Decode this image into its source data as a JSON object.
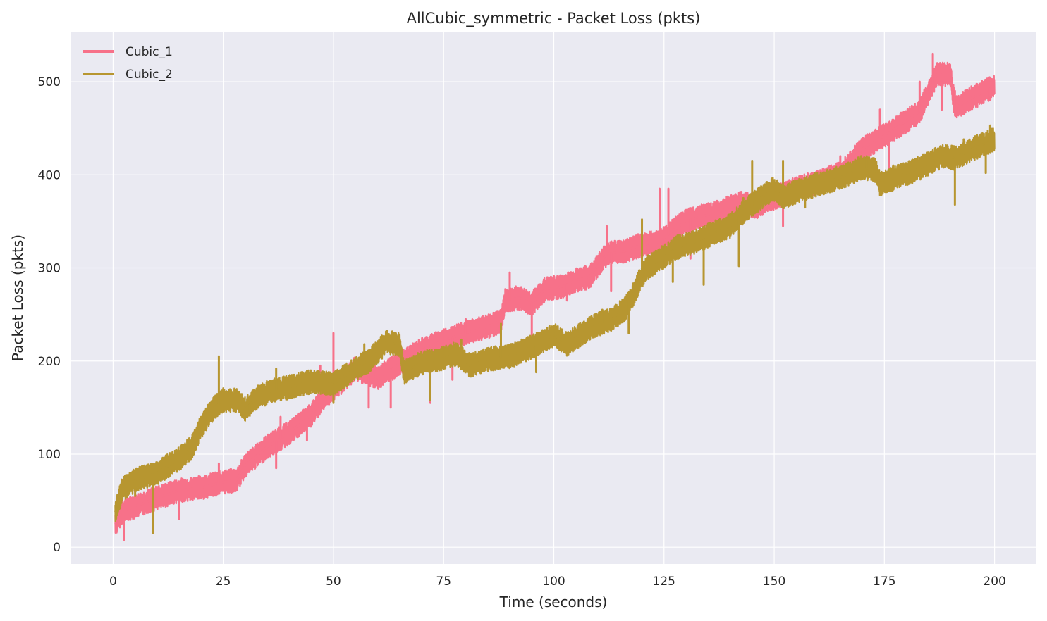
{
  "chart_data": {
    "type": "line",
    "title": "AllCubic_symmetric - Packet Loss (pkts)",
    "xlabel": "Time (seconds)",
    "ylabel": "Packet Loss (pkts)",
    "xlim": [
      -9.5,
      209.5
    ],
    "ylim": [
      -18,
      553
    ],
    "xticks": [
      0,
      25,
      50,
      75,
      100,
      125,
      150,
      175,
      200
    ],
    "yticks": [
      0,
      100,
      200,
      300,
      400,
      500
    ],
    "grid": true,
    "background": "#eaeaf2",
    "legend_position": "top-left",
    "series": [
      {
        "name": "Cubic_1",
        "color": "#f77189",
        "points": [
          [
            0.5,
            25
          ],
          [
            2,
            38
          ],
          [
            5,
            44
          ],
          [
            10,
            53
          ],
          [
            15,
            61
          ],
          [
            20,
            64
          ],
          [
            25,
            70
          ],
          [
            28,
            72
          ],
          [
            30,
            88
          ],
          [
            35,
            108
          ],
          [
            40,
            123
          ],
          [
            45,
            142
          ],
          [
            48,
            162
          ],
          [
            52,
            178
          ],
          [
            55,
            192
          ],
          [
            60,
            182
          ],
          [
            65,
            197
          ],
          [
            70,
            212
          ],
          [
            75,
            222
          ],
          [
            80,
            230
          ],
          [
            85,
            237
          ],
          [
            88,
            243
          ],
          [
            89,
            265
          ],
          [
            92,
            268
          ],
          [
            95,
            262
          ],
          [
            98,
            277
          ],
          [
            102,
            280
          ],
          [
            105,
            287
          ],
          [
            108,
            290
          ],
          [
            112,
            315
          ],
          [
            116,
            318
          ],
          [
            120,
            325
          ],
          [
            124,
            328
          ],
          [
            127,
            340
          ],
          [
            130,
            350
          ],
          [
            133,
            355
          ],
          [
            136,
            358
          ],
          [
            140,
            365
          ],
          [
            143,
            370
          ],
          [
            146,
            366
          ],
          [
            150,
            375
          ],
          [
            155,
            385
          ],
          [
            160,
            392
          ],
          [
            165,
            402
          ],
          [
            170,
            428
          ],
          [
            175,
            442
          ],
          [
            180,
            458
          ],
          [
            183,
            468
          ],
          [
            185,
            488
          ],
          [
            187,
            508
          ],
          [
            190,
            508
          ],
          [
            191,
            472
          ],
          [
            195,
            483
          ],
          [
            200,
            495
          ]
        ],
        "spikes": [
          [
            2.5,
            8
          ],
          [
            2,
            72
          ],
          [
            15,
            30
          ],
          [
            24,
            90
          ],
          [
            37,
            85
          ],
          [
            38,
            140
          ],
          [
            44,
            115
          ],
          [
            47,
            195
          ],
          [
            50,
            230
          ],
          [
            58,
            150
          ],
          [
            63,
            150
          ],
          [
            72,
            155
          ],
          [
            77,
            180
          ],
          [
            80,
            245
          ],
          [
            90,
            295
          ],
          [
            95,
            225
          ],
          [
            103,
            265
          ],
          [
            112,
            345
          ],
          [
            113,
            275
          ],
          [
            124,
            385
          ],
          [
            126,
            385
          ],
          [
            131,
            310
          ],
          [
            147,
            380
          ],
          [
            152,
            345
          ],
          [
            165,
            420
          ],
          [
            174,
            470
          ],
          [
            176,
            385
          ],
          [
            183,
            500
          ],
          [
            186,
            530
          ],
          [
            188,
            470
          ],
          [
            191,
            490
          ],
          [
            199,
            480
          ]
        ]
      },
      {
        "name": "Cubic_2",
        "color": "#b79630",
        "points": [
          [
            0.5,
            38
          ],
          [
            2,
            62
          ],
          [
            5,
            72
          ],
          [
            10,
            80
          ],
          [
            15,
            95
          ],
          [
            18,
            108
          ],
          [
            20,
            130
          ],
          [
            23,
            150
          ],
          [
            25,
            158
          ],
          [
            28,
            158
          ],
          [
            30,
            148
          ],
          [
            33,
            162
          ],
          [
            36,
            168
          ],
          [
            40,
            172
          ],
          [
            45,
            178
          ],
          [
            50,
            175
          ],
          [
            55,
            192
          ],
          [
            58,
            200
          ],
          [
            62,
            220
          ],
          [
            65,
            218
          ],
          [
            66,
            188
          ],
          [
            70,
            198
          ],
          [
            75,
            203
          ],
          [
            78,
            208
          ],
          [
            81,
            195
          ],
          [
            85,
            202
          ],
          [
            90,
            205
          ],
          [
            95,
            215
          ],
          [
            100,
            228
          ],
          [
            103,
            218
          ],
          [
            108,
            235
          ],
          [
            113,
            245
          ],
          [
            116,
            255
          ],
          [
            118,
            272
          ],
          [
            121,
            300
          ],
          [
            125,
            312
          ],
          [
            128,
            322
          ],
          [
            132,
            328
          ],
          [
            136,
            337
          ],
          [
            140,
            345
          ],
          [
            143,
            360
          ],
          [
            146,
            372
          ],
          [
            150,
            385
          ],
          [
            152,
            375
          ],
          [
            155,
            382
          ],
          [
            160,
            390
          ],
          [
            165,
            397
          ],
          [
            170,
            408
          ],
          [
            173,
            405
          ],
          [
            174,
            390
          ],
          [
            178,
            398
          ],
          [
            182,
            405
          ],
          [
            185,
            412
          ],
          [
            188,
            420
          ],
          [
            191,
            418
          ],
          [
            195,
            428
          ],
          [
            200,
            438
          ]
        ],
        "spikes": [
          [
            9,
            15
          ],
          [
            5,
            55
          ],
          [
            20,
            140
          ],
          [
            24,
            205
          ],
          [
            31,
            145
          ],
          [
            37,
            192
          ],
          [
            50,
            155
          ],
          [
            57,
            218
          ],
          [
            64,
            228
          ],
          [
            72,
            158
          ],
          [
            79,
            223
          ],
          [
            88,
            240
          ],
          [
            96,
            188
          ],
          [
            100,
            230
          ],
          [
            111,
            255
          ],
          [
            117,
            230
          ],
          [
            120,
            352
          ],
          [
            127,
            285
          ],
          [
            134,
            282
          ],
          [
            142,
            302
          ],
          [
            143,
            375
          ],
          [
            145,
            415
          ],
          [
            152,
            415
          ],
          [
            157,
            365
          ],
          [
            171,
            420
          ],
          [
            177,
            410
          ],
          [
            191,
            368
          ],
          [
            193,
            438
          ],
          [
            199,
            453
          ],
          [
            198,
            402
          ]
        ]
      }
    ]
  }
}
